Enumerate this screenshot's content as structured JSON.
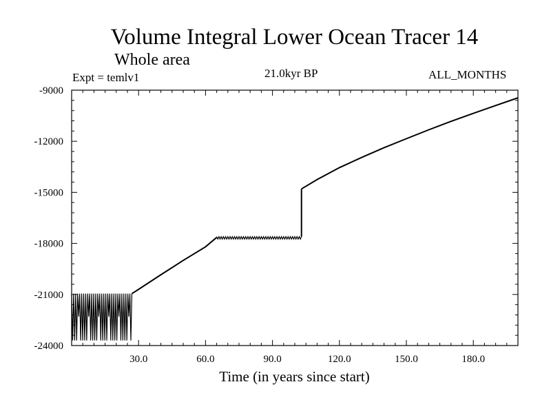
{
  "chart_data": {
    "type": "line",
    "title": "Volume Integral Lower Ocean Tracer 14",
    "subtitle": "Whole area",
    "annotations": {
      "experiment": "Expt = temlv1",
      "period": "21.0kyr BP",
      "months": "ALL_MONTHS"
    },
    "xlabel": "Time (in years since start)",
    "ylabel": "",
    "xlim": [
      0,
      200
    ],
    "ylim": [
      -24000,
      -9000
    ],
    "x_ticks": [
      "30.0",
      "60.0",
      "90.0",
      "120.0",
      "150.0",
      "180.0"
    ],
    "y_ticks": [
      "-9000",
      "-12000",
      "-15000",
      "-18000",
      "-21000",
      "-24000"
    ],
    "grid": false,
    "series": [
      {
        "color": "#000000",
        "segments": [
          {
            "kind": "oscillation",
            "x": [
              0,
              27
            ],
            "y_high": -20950,
            "y_low": -23700,
            "description_values": [
              -22300,
              -23700
            ]
          },
          {
            "kind": "line",
            "x": [
              27,
              30,
              40,
              50,
              60,
              65
            ],
            "y": [
              -20950,
              -20700,
              -19840,
              -19000,
              -18200,
              -17650
            ]
          },
          {
            "kind": "oscillation",
            "x": [
              65,
              103
            ],
            "y_high": -17600,
            "y_low": -17750
          },
          {
            "kind": "line",
            "x": [
              103,
              103
            ],
            "y": [
              -17600,
              -14800
            ]
          },
          {
            "kind": "line",
            "x": [
              103,
              110,
              120,
              130,
              140,
              150,
              160,
              170,
              180,
              190,
              200
            ],
            "y": [
              -14800,
              -14250,
              -13550,
              -12950,
              -12380,
              -11850,
              -11330,
              -10830,
              -10360,
              -9900,
              -9450
            ]
          }
        ]
      }
    ]
  }
}
